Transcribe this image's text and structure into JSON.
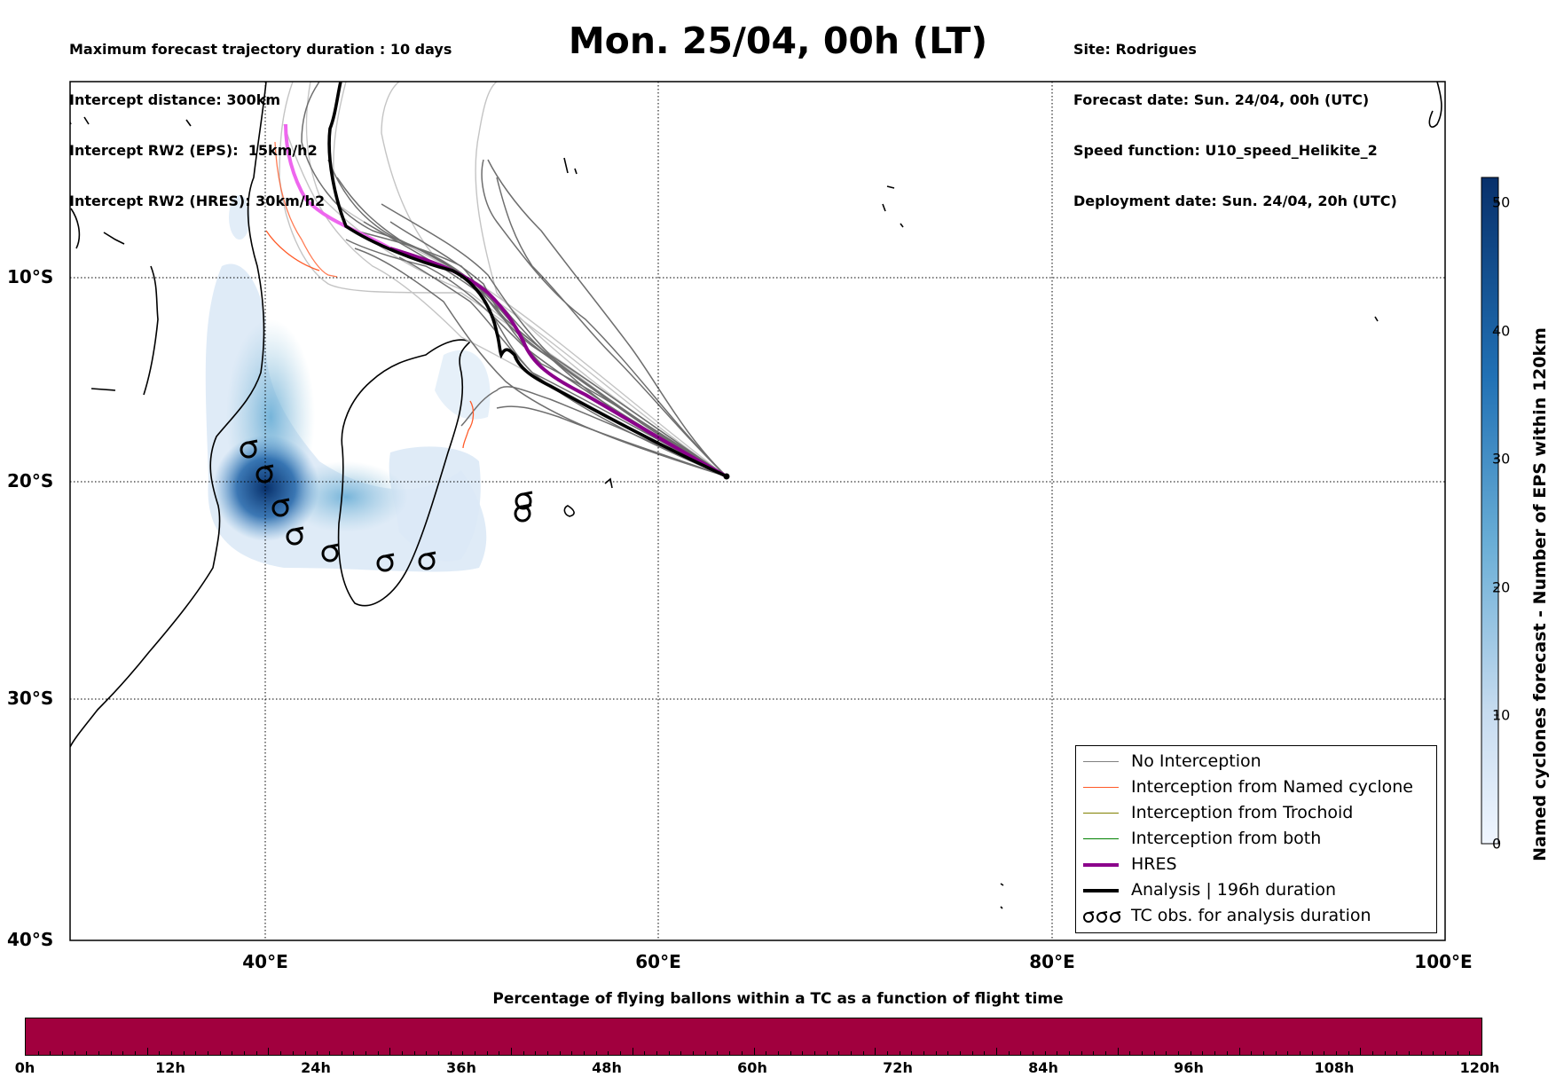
{
  "header": {
    "left_lines": [
      "Maximum forecast trajectory duration : 10 days",
      "Intercept distance: 300km",
      "Intercept RW2 (EPS):  15km/h2",
      "Intercept RW2 (HRES): 30km/h2"
    ],
    "right_lines": [
      "Site: Rodrigues",
      "Forecast date: Sun. 24/04, 00h (UTC)",
      "Speed function: U10_speed_Helikite_2",
      "Deployment date: Sun. 24/04, 20h (UTC)"
    ],
    "title": "Mon. 25/04, 00h (LT)"
  },
  "map": {
    "lat_labels": [
      "10°S",
      "20°S",
      "30°S",
      "40°S"
    ],
    "lat_values": [
      -10,
      -20,
      -30,
      -40
    ],
    "lon_labels": [
      "40°E",
      "60°E",
      "80°E",
      "100°E"
    ],
    "lon_values": [
      40,
      60,
      80,
      100
    ],
    "extent": {
      "lon_min": 30,
      "lon_max": 100,
      "lat_min": -40,
      "lat_max": 0
    },
    "colors": {
      "eps_track": "#6e6e6e",
      "eps_track_light": "#c4c4c4",
      "named_cyclone": "#ff5a28",
      "hres": "#8b008b",
      "hres_light": "#ee66ee",
      "analysis": "#000000",
      "coast": "#000000"
    },
    "tc_obs_icon": "cyclone-symbol-icon",
    "tc_obs_positions": [
      [
        39.2,
        -18.5
      ],
      [
        40.0,
        -19.7
      ],
      [
        40.8,
        -21.3
      ],
      [
        41.5,
        -22.7
      ],
      [
        43.3,
        -23.5
      ],
      [
        46.1,
        -24.0
      ],
      [
        48.2,
        -23.9
      ],
      [
        53.3,
        -21.0
      ],
      [
        53.2,
        -21.6
      ]
    ],
    "deployment_point": [
      63.4,
      -19.7
    ]
  },
  "colorbar": {
    "label": "Named cyclones forecast - Number of EPS within 120km",
    "ticks": [
      "0",
      "10",
      "20",
      "30",
      "40",
      "50"
    ],
    "min": 0,
    "max": 52,
    "colors": [
      "#f0f6ff",
      "#c6dbef",
      "#6aaed6",
      "#2171b5",
      "#08306b"
    ]
  },
  "legend": {
    "items": [
      {
        "label": "No Interception",
        "color": "#808080",
        "style": "thin-line"
      },
      {
        "label": "Interception from Named cyclone",
        "color": "#ff5a28",
        "style": "thin-line"
      },
      {
        "label": "Interception from Trochoid",
        "color": "#808000",
        "style": "thin-line"
      },
      {
        "label": "Interception from both",
        "color": "#008000",
        "style": "thin-line"
      },
      {
        "label": "HRES",
        "color": "#8b008b",
        "style": "thick-line"
      },
      {
        "label": "Analysis | 196h duration",
        "color": "#000000",
        "style": "thick-line"
      },
      {
        "label": "TC obs. for analysis duration",
        "color": "#000000",
        "style": "cyclone-symbols"
      }
    ]
  },
  "flight_time_bar": {
    "title": "Percentage of flying ballons within a TC as a function of flight time",
    "labels": [
      "0h",
      "12h",
      "24h",
      "36h",
      "48h",
      "60h",
      "72h",
      "84h",
      "96h",
      "108h",
      "120h"
    ],
    "fill_color": "#a1003e"
  }
}
